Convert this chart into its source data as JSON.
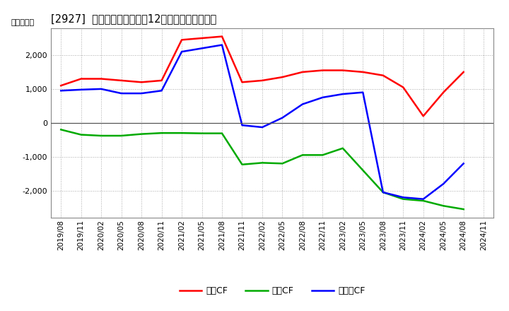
{
  "title": "[2927]  キャッシュフローの12か月移動合計の推移",
  "ylabel": "（百万円）",
  "dates": [
    "2019/08",
    "2019/11",
    "2020/02",
    "2020/05",
    "2020/08",
    "2020/11",
    "2021/02",
    "2021/05",
    "2021/08",
    "2021/11",
    "2022/02",
    "2022/05",
    "2022/08",
    "2022/11",
    "2023/02",
    "2023/05",
    "2023/08",
    "2023/11",
    "2024/02",
    "2024/05",
    "2024/08",
    "2024/11"
  ],
  "営業CF": [
    1100,
    1300,
    1300,
    1250,
    1200,
    1250,
    2450,
    2500,
    2550,
    1200,
    1250,
    1350,
    1500,
    1550,
    1550,
    1500,
    1400,
    1050,
    200,
    900,
    1500,
    null
  ],
  "投資CF": [
    -200,
    -350,
    -380,
    -380,
    -330,
    -300,
    -300,
    -310,
    -310,
    -1230,
    -1180,
    -1200,
    -950,
    -950,
    -750,
    -1400,
    -2050,
    -2250,
    -2300,
    -2450,
    -2550,
    null
  ],
  "フリーCF": [
    950,
    980,
    1000,
    870,
    870,
    950,
    2100,
    2200,
    2300,
    -70,
    -130,
    150,
    550,
    750,
    850,
    900,
    -2050,
    -2200,
    -2250,
    -1800,
    -1200,
    null
  ],
  "colors": {
    "営業CF": "#ff0000",
    "投資CF": "#00aa00",
    "フリーCF": "#0000ff"
  },
  "ylim": [
    -2800,
    2800
  ],
  "yticks": [
    -2000,
    -1000,
    0,
    1000,
    2000
  ],
  "background_color": "#ffffff",
  "grid_color": "#aaaaaa",
  "linewidth": 1.8
}
